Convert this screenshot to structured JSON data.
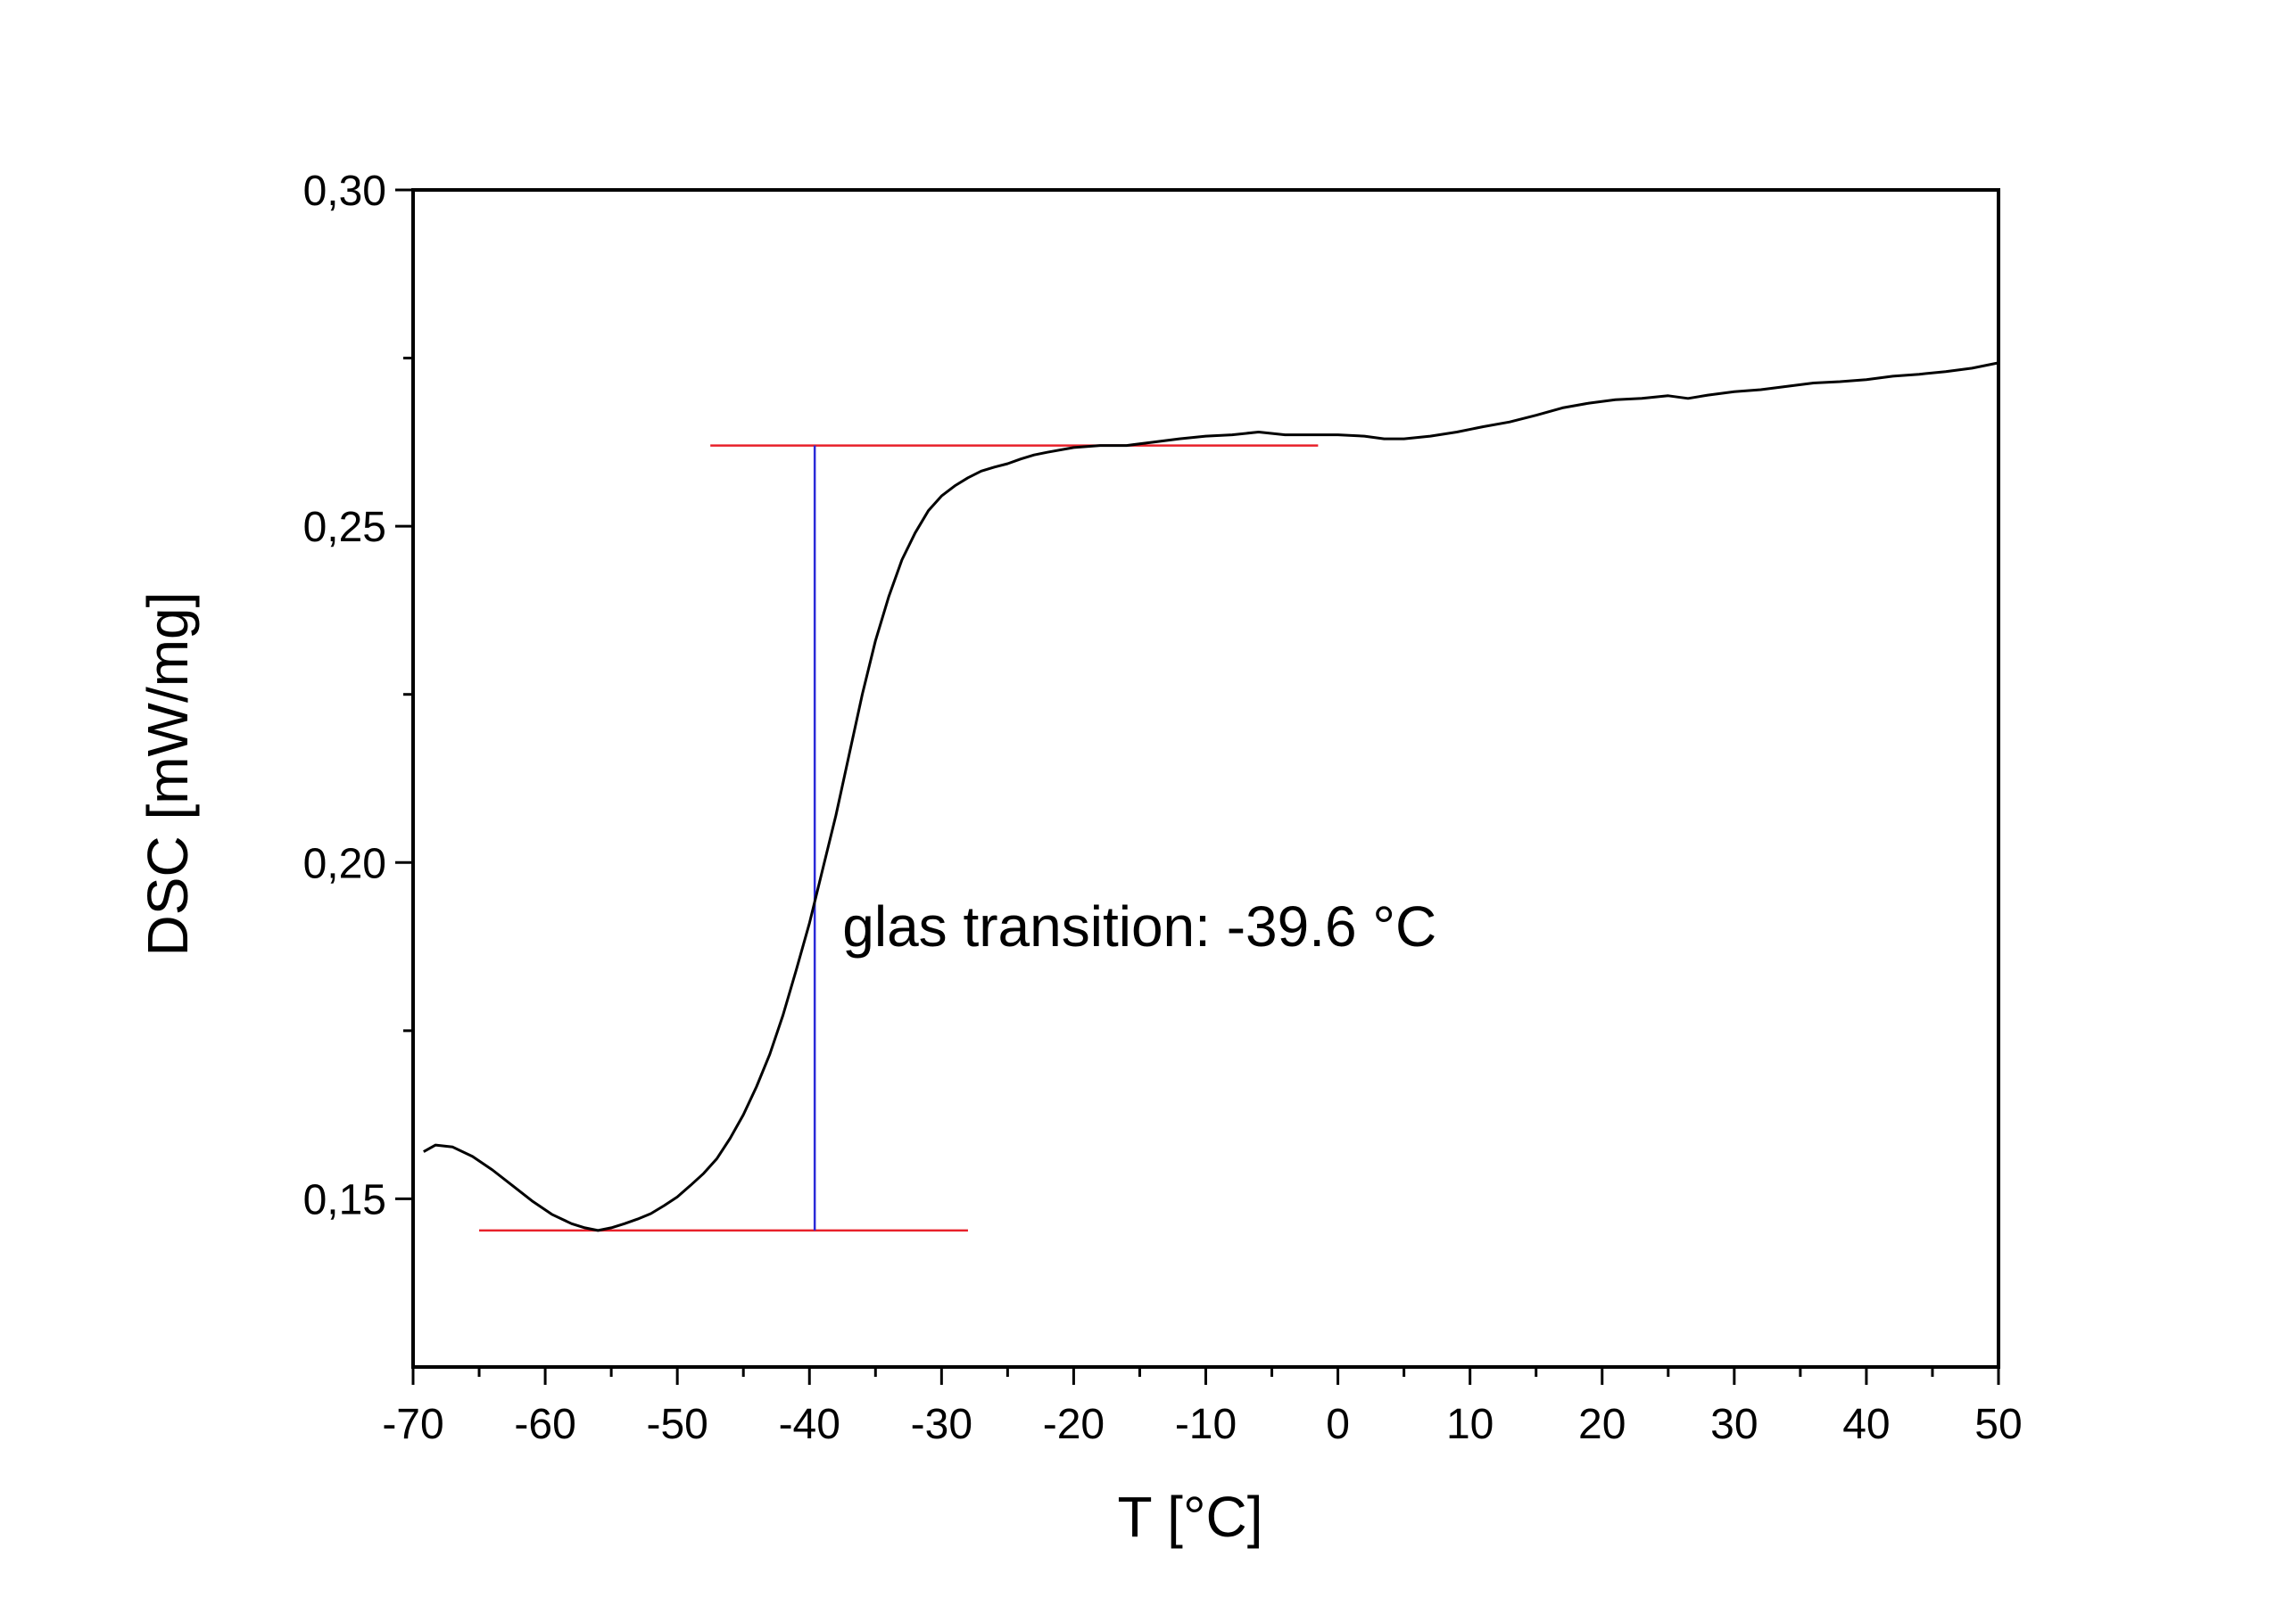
{
  "chart_data": {
    "type": "line",
    "xlabel": "T [°C]",
    "ylabel": "DSC [mW/mg]",
    "xlim": [
      -70,
      50
    ],
    "ylim": [
      0.125,
      0.3
    ],
    "x_ticks": [
      -70,
      -60,
      -50,
      -40,
      -30,
      -20,
      -10,
      0,
      10,
      20,
      30,
      40,
      50
    ],
    "x_tick_labels": [
      "-70",
      "-60",
      "-50",
      "-40",
      "-30",
      "-20",
      "-10",
      "0",
      "10",
      "20",
      "30",
      "40",
      "50"
    ],
    "y_ticks": [
      0.15,
      0.2,
      0.25,
      0.3
    ],
    "y_tick_labels": [
      "0,15",
      "0,20",
      "0,25",
      "0,30"
    ],
    "grid": false,
    "series": [
      {
        "color": "#000000",
        "points": [
          [
            -69.2,
            0.157
          ],
          [
            -68.3,
            0.158
          ],
          [
            -67.0,
            0.1577
          ],
          [
            -65.5,
            0.1563
          ],
          [
            -64.0,
            0.1543
          ],
          [
            -62.5,
            0.152
          ],
          [
            -61.0,
            0.1497
          ],
          [
            -59.5,
            0.1477
          ],
          [
            -58.0,
            0.1463
          ],
          [
            -57.0,
            0.1457
          ],
          [
            -56.0,
            0.1453
          ],
          [
            -55.0,
            0.1457
          ],
          [
            -54.0,
            0.1463
          ],
          [
            -53.0,
            0.147
          ],
          [
            -52.0,
            0.1478
          ],
          [
            -51.0,
            0.149
          ],
          [
            -50.0,
            0.1503
          ],
          [
            -49.0,
            0.152
          ],
          [
            -48.0,
            0.1538
          ],
          [
            -47.0,
            0.156
          ],
          [
            -46.0,
            0.159
          ],
          [
            -45.0,
            0.1625
          ],
          [
            -44.0,
            0.1667
          ],
          [
            -43.0,
            0.1715
          ],
          [
            -42.0,
            0.1773
          ],
          [
            -41.0,
            0.184
          ],
          [
            -40.0,
            0.191
          ],
          [
            -39.0,
            0.199
          ],
          [
            -38.0,
            0.207
          ],
          [
            -37.0,
            0.216
          ],
          [
            -36.0,
            0.225
          ],
          [
            -35.0,
            0.233
          ],
          [
            -34.0,
            0.2395
          ],
          [
            -33.0,
            0.245
          ],
          [
            -32.0,
            0.249
          ],
          [
            -31.0,
            0.2523
          ],
          [
            -30.0,
            0.2545
          ],
          [
            -29.0,
            0.256
          ],
          [
            -28.0,
            0.2572
          ],
          [
            -27.0,
            0.2582
          ],
          [
            -26.0,
            0.2588
          ],
          [
            -25.0,
            0.2593
          ],
          [
            -24.0,
            0.26
          ],
          [
            -23.0,
            0.2606
          ],
          [
            -22.0,
            0.261
          ],
          [
            -20.0,
            0.2617
          ],
          [
            -18.0,
            0.262
          ],
          [
            -16.0,
            0.262
          ],
          [
            -14.0,
            0.2625
          ],
          [
            -12.0,
            0.263
          ],
          [
            -10.0,
            0.2634
          ],
          [
            -8.0,
            0.2636
          ],
          [
            -6.0,
            0.264
          ],
          [
            -4.0,
            0.2636
          ],
          [
            -2.0,
            0.2636
          ],
          [
            0.0,
            0.2636
          ],
          [
            2.0,
            0.2634
          ],
          [
            3.5,
            0.263
          ],
          [
            5.0,
            0.263
          ],
          [
            7.0,
            0.2634
          ],
          [
            9.0,
            0.264
          ],
          [
            11.0,
            0.2648
          ],
          [
            13.0,
            0.2655
          ],
          [
            15.0,
            0.2665
          ],
          [
            17.0,
            0.2676
          ],
          [
            19.0,
            0.2683
          ],
          [
            21.0,
            0.2688
          ],
          [
            23.0,
            0.269
          ],
          [
            25.0,
            0.2694
          ],
          [
            26.5,
            0.269
          ],
          [
            28.0,
            0.2695
          ],
          [
            30.0,
            0.27
          ],
          [
            32.0,
            0.2703
          ],
          [
            34.0,
            0.2708
          ],
          [
            36.0,
            0.2713
          ],
          [
            38.0,
            0.2715
          ],
          [
            40.0,
            0.2718
          ],
          [
            42.0,
            0.2723
          ],
          [
            44.0,
            0.2726
          ],
          [
            46.0,
            0.273
          ],
          [
            48.0,
            0.2735
          ],
          [
            50.0,
            0.2743
          ]
        ]
      }
    ],
    "baselines": [
      {
        "color": "#e8202a",
        "x": [
          -65,
          -28
        ],
        "y": 0.1453
      },
      {
        "color": "#e8202a",
        "x": [
          -47.5,
          -1.5
        ],
        "y": 0.262
      }
    ],
    "step_marker": {
      "color": "#2a2ad8",
      "x": -39.6,
      "y": [
        0.1453,
        0.262
      ]
    },
    "annotations": [
      {
        "text": "glas transition: -39.6 °C",
        "x": -37.5,
        "y": 0.1905
      }
    ]
  }
}
